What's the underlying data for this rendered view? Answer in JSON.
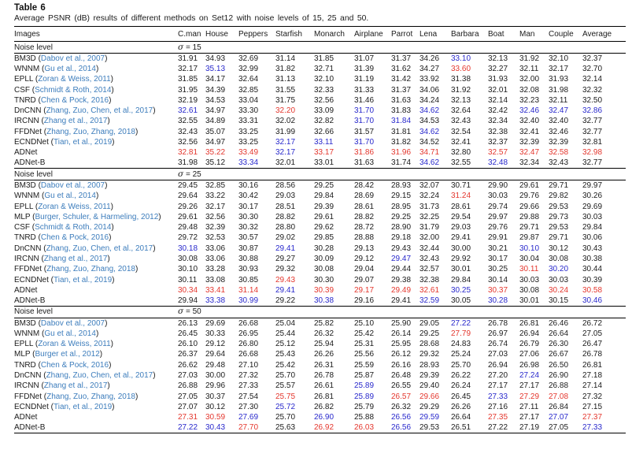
{
  "page": {
    "title": "Table 6",
    "caption": "Average PSNR (dB) results of different methods on Set12 with noise levels of 15, 25 and 50."
  },
  "colors": {
    "best_value_red": "#e4372e",
    "second_best_blue": "#2929cc",
    "citation_blue": "#3d7dbc",
    "rule_black": "#000000"
  },
  "table": {
    "columns": [
      "Images",
      "C.man",
      "House",
      "Peppers",
      "Starfish",
      "Monarch",
      "Airplane",
      "Parrot",
      "Lena",
      "Barbara",
      "Boat",
      "Man",
      "Couple",
      "Average"
    ],
    "noise_label": "Noise level",
    "style_legend": {
      "k": "normal",
      "b": "second-best-blue",
      "r": "best-red"
    },
    "sections": [
      {
        "sigma_label": "σ = 15",
        "rows": [
          {
            "method": "BM3D",
            "cite": "Dabov et al., 2007",
            "values": [
              "31.91",
              "34.93",
              "32.69",
              "31.14",
              "31.85",
              "31.07",
              "31.37",
              "34.26",
              "33.10",
              "32.13",
              "31.92",
              "32.10",
              "32.37"
            ],
            "styles": "kkkkkkkkbkkkk"
          },
          {
            "method": "WNNM",
            "cite": "Gu et al., 2014",
            "values": [
              "32.17",
              "35.13",
              "32.99",
              "31.82",
              "32.71",
              "31.39",
              "31.62",
              "34.27",
              "33.60",
              "32.27",
              "32.11",
              "32.17",
              "32.70"
            ],
            "styles": "kbkkkkkkrkkkk"
          },
          {
            "method": "EPLL",
            "cite": "Zoran & Weiss, 2011",
            "values": [
              "31.85",
              "34.17",
              "32.64",
              "31.13",
              "32.10",
              "31.19",
              "31.42",
              "33.92",
              "31.38",
              "31.93",
              "32.00",
              "31.93",
              "32.14"
            ],
            "styles": "kkkkkkkkkkkkk"
          },
          {
            "method": "CSF",
            "cite": "Schmidt & Roth, 2014",
            "values": [
              "31.95",
              "34.39",
              "32.85",
              "31.55",
              "32.33",
              "31.33",
              "31.37",
              "34.06",
              "31.92",
              "32.01",
              "32.08",
              "31.98",
              "32.32"
            ],
            "styles": "kkkkkkkkkkkkk"
          },
          {
            "method": "TNRD",
            "cite": "Chen & Pock, 2016",
            "values": [
              "32.19",
              "34.53",
              "33.04",
              "31.75",
              "32.56",
              "31.46",
              "31.63",
              "34.24",
              "32.13",
              "32.14",
              "32.23",
              "32.11",
              "32.50"
            ],
            "styles": "kkkkkkkkkkkkk"
          },
          {
            "method": "DnCNN",
            "cite": "Zhang, Zuo, Chen, et al., 2017",
            "values": [
              "32.61",
              "34.97",
              "33.30",
              "32.20",
              "33.09",
              "31.70",
              "31.83",
              "34.62",
              "32.64",
              "32.42",
              "32.46",
              "32.47",
              "32.86"
            ],
            "styles": "bkkrkbkbkkbbb"
          },
          {
            "method": "IRCNN",
            "cite": "Zhang et al., 2017",
            "values": [
              "32.55",
              "34.89",
              "33.31",
              "32.02",
              "32.82",
              "31.70",
              "31.84",
              "34.53",
              "32.43",
              "32.34",
              "32.40",
              "32.40",
              "32.77"
            ],
            "styles": "kkkkkbbkkkkkk"
          },
          {
            "method": "FFDNet",
            "cite": "Zhang, Zuo, Zhang, 2018",
            "values": [
              "32.43",
              "35.07",
              "33.25",
              "31.99",
              "32.66",
              "31.57",
              "31.81",
              "34.62",
              "32.54",
              "32.38",
              "32.41",
              "32.46",
              "32.77"
            ],
            "styles": "kkkkkkkbkkkkk"
          },
          {
            "method": "ECNDNet",
            "cite": "Tian, et al., 2019",
            "values": [
              "32.56",
              "34.97",
              "33.25",
              "32.17",
              "33.11",
              "31.70",
              "31.82",
              "34.52",
              "32.41",
              "32.37",
              "32.39",
              "32.39",
              "32.81"
            ],
            "styles": "kkkbbbkkkkkkk"
          },
          {
            "method": "ADNet",
            "cite": "",
            "values": [
              "32.81",
              "35.22",
              "33.49",
              "32.17",
              "33.17",
              "31.86",
              "31.96",
              "34.71",
              "32.80",
              "32.57",
              "32.47",
              "32.58",
              "32.98"
            ],
            "styles": "rrrbrrrrkrrrr"
          },
          {
            "method": "ADNet-B",
            "cite": "",
            "values": [
              "31.98",
              "35.12",
              "33.34",
              "32.01",
              "33.01",
              "31.63",
              "31.74",
              "34.62",
              "32.55",
              "32.48",
              "32.34",
              "32.43",
              "32.77"
            ],
            "styles": "kkbkkkkbkbkkk"
          }
        ]
      },
      {
        "sigma_label": "σ = 25",
        "rows": [
          {
            "method": "BM3D",
            "cite": "Dabov et al., 2007",
            "values": [
              "29.45",
              "32.85",
              "30.16",
              "28.56",
              "29.25",
              "28.42",
              "28.93",
              "32.07",
              "30.71",
              "29.90",
              "29.61",
              "29.71",
              "29.97"
            ],
            "styles": "kkkkkkkkkkkkk"
          },
          {
            "method": "WNNM",
            "cite": "Gu et al., 2014",
            "values": [
              "29.64",
              "33.22",
              "30.42",
              "29.03",
              "29.84",
              "28.69",
              "29.15",
              "32.24",
              "31.24",
              "30.03",
              "29.76",
              "29.82",
              "30.26"
            ],
            "styles": "kkkkkkkkrkkkk"
          },
          {
            "method": "EPLL",
            "cite": "Zoran & Weiss, 2011",
            "values": [
              "29.26",
              "32.17",
              "30.17",
              "28.51",
              "29.39",
              "28.61",
              "28.95",
              "31.73",
              "28.61",
              "29.74",
              "29.66",
              "29.53",
              "29.69"
            ],
            "styles": "kkkkkkkkkkkkk"
          },
          {
            "method": "MLP",
            "cite": "Burger, Schuler, & Harmeling, 2012",
            "values": [
              "29.61",
              "32.56",
              "30.30",
              "28.82",
              "29.61",
              "28.82",
              "29.25",
              "32.25",
              "29.54",
              "29.97",
              "29.88",
              "29.73",
              "30.03"
            ],
            "styles": "kkkkkkkkkkkkk"
          },
          {
            "method": "CSF",
            "cite": "Schmidt & Roth, 2014",
            "values": [
              "29.48",
              "32.39",
              "30.32",
              "28.80",
              "29.62",
              "28.72",
              "28.90",
              "31.79",
              "29.03",
              "29.76",
              "29.71",
              "29.53",
              "29.84"
            ],
            "styles": "kkkkkkkkkkkkk"
          },
          {
            "method": "TNRD",
            "cite": "Chen & Pock, 2016",
            "values": [
              "29.72",
              "32.53",
              "30.57",
              "29.02",
              "29.85",
              "28.88",
              "29.18",
              "32.00",
              "29.41",
              "29.91",
              "29.87",
              "29.71",
              "30.06"
            ],
            "styles": "kkkkkkkkkkkkk"
          },
          {
            "method": "DnCNN",
            "cite": "Zhang, Zuo, Chen, et al., 2017",
            "values": [
              "30.18",
              "33.06",
              "30.87",
              "29.41",
              "30.28",
              "29.13",
              "29.43",
              "32.44",
              "30.00",
              "30.21",
              "30.10",
              "30.12",
              "30.43"
            ],
            "styles": "bkkbkkkkkkbkk"
          },
          {
            "method": "IRCNN",
            "cite": "Zhang et al., 2017",
            "values": [
              "30.08",
              "33.06",
              "30.88",
              "29.27",
              "30.09",
              "29.12",
              "29.47",
              "32.43",
              "29.92",
              "30.17",
              "30.04",
              "30.08",
              "30.38"
            ],
            "styles": "kkkkkkbkkkkkk"
          },
          {
            "method": "FFDNet",
            "cite": "Zhang, Zuo, Zhang, 2018",
            "values": [
              "30.10",
              "33.28",
              "30.93",
              "29.32",
              "30.08",
              "29.04",
              "29.44",
              "32.57",
              "30.01",
              "30.25",
              "30.11",
              "30.20",
              "30.44"
            ],
            "styles": "kkkkkkkkkkrbk"
          },
          {
            "method": "ECNDNet",
            "cite": "Tian, et al., 2019",
            "values": [
              "30.11",
              "33.08",
              "30.85",
              "29.43",
              "30.30",
              "29.07",
              "29.38",
              "32.38",
              "29.84",
              "30.14",
              "30.03",
              "30.03",
              "30.39"
            ],
            "styles": "kkkrkkkkkkkkk"
          },
          {
            "method": "ADNet",
            "cite": "",
            "values": [
              "30.34",
              "33.41",
              "31.14",
              "29.41",
              "30.39",
              "29.17",
              "29.49",
              "32.61",
              "30.25",
              "30.37",
              "30.08",
              "30.24",
              "30.58"
            ],
            "styles": "rrrbrrrrbrkrr"
          },
          {
            "method": "ADNet-B",
            "cite": "",
            "values": [
              "29.94",
              "33.38",
              "30.99",
              "29.22",
              "30.38",
              "29.16",
              "29.41",
              "32.59",
              "30.05",
              "30.28",
              "30.01",
              "30.15",
              "30.46"
            ],
            "styles": "kbbkbkkbkbkkb"
          }
        ]
      },
      {
        "sigma_label": "σ = 50",
        "rows": [
          {
            "method": "BM3D",
            "cite": "Dabov et al., 2007",
            "values": [
              "26.13",
              "29.69",
              "26.68",
              "25.04",
              "25.82",
              "25.10",
              "25.90",
              "29.05",
              "27.22",
              "26.78",
              "26.81",
              "26.46",
              "26.72"
            ],
            "styles": "kkkkkkkkbkkkk"
          },
          {
            "method": "WNNM",
            "cite": "Gu et al., 2014",
            "values": [
              "26.45",
              "30.33",
              "26.95",
              "25.44",
              "26.32",
              "25.42",
              "26.14",
              "29.25",
              "27.79",
              "26.97",
              "26.94",
              "26.64",
              "27.05"
            ],
            "styles": "kkkkkkkkrkkkk"
          },
          {
            "method": "EPLL",
            "cite": "Zoran & Weiss, 2011",
            "values": [
              "26.10",
              "29.12",
              "26.80",
              "25.12",
              "25.94",
              "25.31",
              "25.95",
              "28.68",
              "24.83",
              "26.74",
              "26.79",
              "26.30",
              "26.47"
            ],
            "styles": "kkkkkkkkkkkkk"
          },
          {
            "method": "MLP",
            "cite": "Burger et al., 2012",
            "values": [
              "26.37",
              "29.64",
              "26.68",
              "25.43",
              "26.26",
              "25.56",
              "26.12",
              "29.32",
              "25.24",
              "27.03",
              "27.06",
              "26.67",
              "26.78"
            ],
            "styles": "kkkkkkkkkkkkk"
          },
          {
            "method": "TNRD",
            "cite": "Chen & Pock, 2016",
            "values": [
              "26.62",
              "29.48",
              "27.10",
              "25.42",
              "26.31",
              "25.59",
              "26.16",
              "28.93",
              "25.70",
              "26.94",
              "26.98",
              "26.50",
              "26.81"
            ],
            "styles": "kkkkkkkkkkkkk"
          },
          {
            "method": "DnCNN",
            "cite": "Zhang, Zuo, Chen, et al., 2017",
            "values": [
              "27.03",
              "30.00",
              "27.32",
              "25.70",
              "26.78",
              "25.87",
              "26.48",
              "29.39",
              "26.22",
              "27.20",
              "27.24",
              "26.90",
              "27.18"
            ],
            "styles": "kkkkkkkkkkbkk"
          },
          {
            "method": "IRCNN",
            "cite": "Zhang et al., 2017",
            "values": [
              "26.88",
              "29.96",
              "27.33",
              "25.57",
              "26.61",
              "25.89",
              "26.55",
              "29.40",
              "26.24",
              "27.17",
              "27.17",
              "26.88",
              "27.14"
            ],
            "styles": "kkkkkbkkkkkkk"
          },
          {
            "method": "FFDNet",
            "cite": "Zhang, Zuo, Zhang, 2018",
            "values": [
              "27.05",
              "30.37",
              "27.54",
              "25.75",
              "26.81",
              "25.89",
              "26.57",
              "29.66",
              "26.45",
              "27.33",
              "27.29",
              "27.08",
              "27.32"
            ],
            "styles": "kkkrkbrrkbrrk"
          },
          {
            "method": "ECNDNet",
            "cite": "Tian, et al., 2019",
            "values": [
              "27.07",
              "30.12",
              "27.30",
              "25.72",
              "26.82",
              "25.79",
              "26.32",
              "29.29",
              "26.26",
              "27.16",
              "27.11",
              "26.84",
              "27.15"
            ],
            "styles": "kkkbkkkkkkkkk"
          },
          {
            "method": "ADNet",
            "cite": "",
            "values": [
              "27.31",
              "30.59",
              "27.69",
              "25.70",
              "26.90",
              "25.88",
              "26.56",
              "29.59",
              "26.64",
              "27.35",
              "27.17",
              "27.07",
              "27.37"
            ],
            "styles": "rrbkbkbbkrkbr"
          },
          {
            "method": "ADNet-B",
            "cite": "",
            "values": [
              "27.22",
              "30.43",
              "27.70",
              "25.63",
              "26.92",
              "26.03",
              "26.56",
              "29.53",
              "26.51",
              "27.22",
              "27.19",
              "27.05",
              "27.33"
            ],
            "styles": "bbrkrrbkkkkkb"
          }
        ]
      }
    ]
  }
}
